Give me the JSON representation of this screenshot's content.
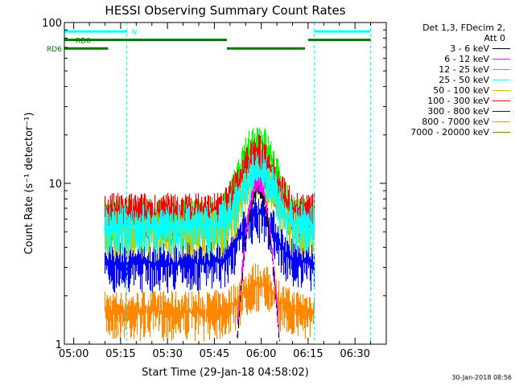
{
  "chart_data": {
    "type": "line",
    "title": "HESSI Observing Summary Count Rates",
    "xlabel": "Start Time (29-Jan-18 04:58:02)",
    "ylabel": "Count Rate (s⁻¹ detector⁻¹)",
    "y_scale": "log",
    "ylim": [
      1,
      100
    ],
    "x_range": [
      "04:57",
      "06:40"
    ],
    "x_ticks": [
      "05:00",
      "05:15",
      "05:30",
      "05:45",
      "06:00",
      "06:15",
      "06:30"
    ],
    "y_ticks": [
      "1",
      "10",
      "100"
    ],
    "data_time_range": [
      "05:10",
      "06:17"
    ],
    "legend_header": [
      "Det 1,3, FDecim 2,",
      "Att 0"
    ],
    "series": [
      {
        "name": "3 - 6 keV",
        "color": "#000000",
        "peak_time": "05:59",
        "base": 0,
        "peak": 9
      },
      {
        "name": "6 - 12 keV",
        "color": "#ff00ff",
        "peak_time": "05:59",
        "base": 0,
        "peak": 10
      },
      {
        "name": "12 - 25 keV",
        "color": "#00ff00",
        "peak_time": "05:59",
        "base": 6,
        "peak": 18
      },
      {
        "name": "25 - 50 keV",
        "color": "#00ffff",
        "peak_time": "05:59",
        "base": 5.5,
        "peak": 12
      },
      {
        "name": "50 - 100 keV",
        "color": "#c8c800",
        "peak_time": "05:59",
        "base": 5.0,
        "peak": 11
      },
      {
        "name": "100 - 300 keV",
        "color": "#ff0000",
        "peak_time": "05:59",
        "base": 6.5,
        "peak": 15
      },
      {
        "name": "300 - 800 keV",
        "color": "#0000ff",
        "peak_time": "05:59",
        "base": 3.2,
        "peak": 6.5
      },
      {
        "name": "800 - 7000 keV",
        "color": "#ff8800",
        "peak_time": "05:59",
        "base": 1.6,
        "peak": 2.4
      },
      {
        "name": "7000 - 20000 keV",
        "color": "#808000",
        "peak_time": "05:59",
        "base": 0,
        "peak": 0
      }
    ],
    "annotations": {
      "vlines": [
        "05:17",
        "06:17",
        "06:35"
      ],
      "segments": [
        {
          "label": "N",
          "color": "#00ffff",
          "y": 88,
          "spans": [
            [
              "04:57",
              "05:17"
            ],
            [
              "06:17",
              "06:35"
            ]
          ]
        },
        {
          "label": "RD0",
          "color": "#007700",
          "y": 78,
          "spans": [
            [
              "04:57",
              "05:11"
            ],
            [
              "05:11",
              "05:49"
            ],
            [
              "06:15",
              "06:35"
            ]
          ]
        },
        {
          "label": "RD6",
          "color": "#007700",
          "y": 69,
          "spans": [
            [
              "04:57",
              "05:11"
            ],
            [
              "05:49",
              "06:14"
            ]
          ]
        }
      ]
    }
  },
  "footer": {
    "timestamp": "30-Jan-2018 08:56"
  }
}
